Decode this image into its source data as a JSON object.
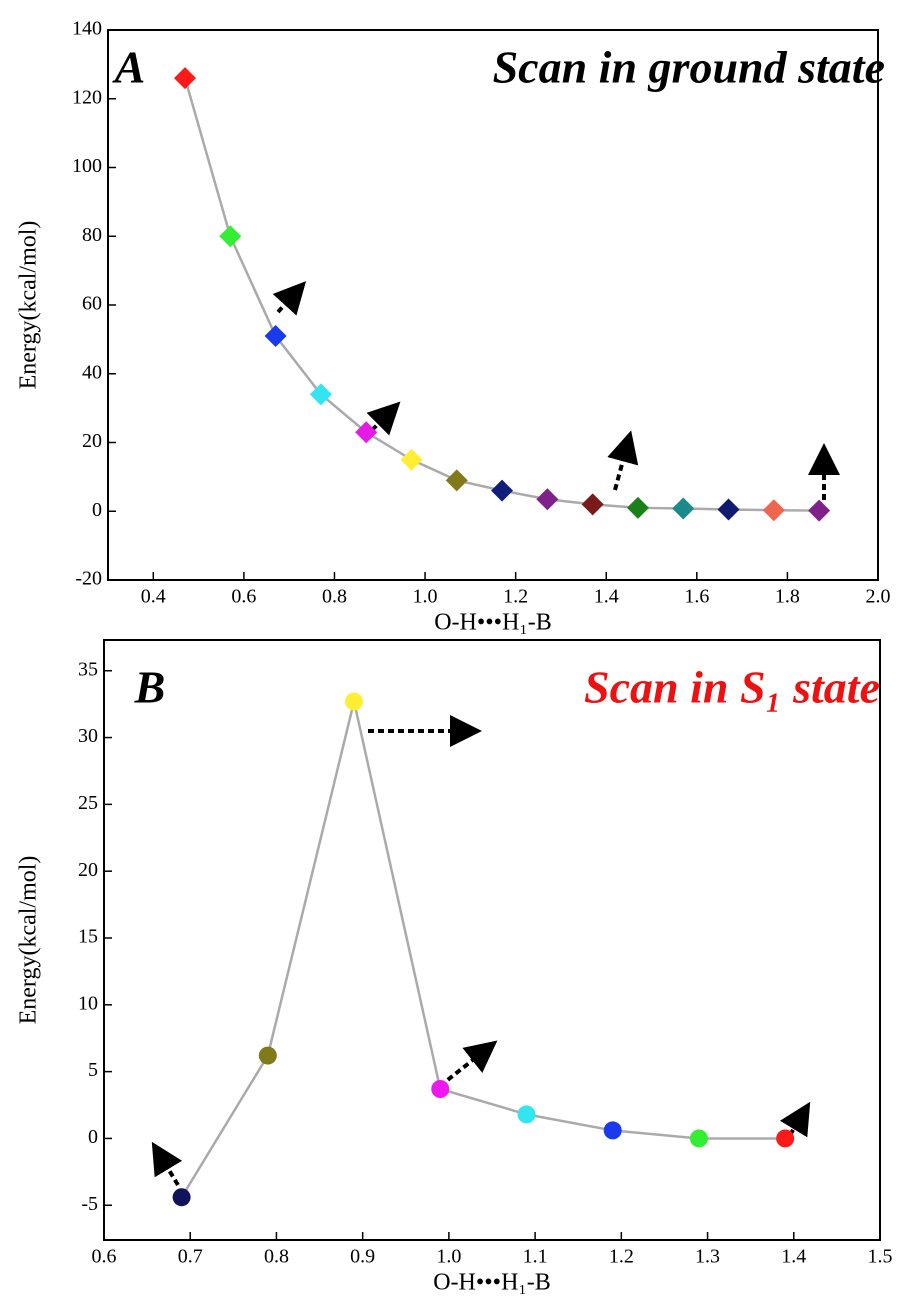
{
  "chart_data": [
    {
      "type": "line",
      "panel_label": "A",
      "title": "Scan in ground state",
      "title_color": "#000000",
      "x_label": "O-H•••H₁-B",
      "y_label": "Energy(kcal/mol)",
      "x": [
        0.47,
        0.57,
        0.67,
        0.77,
        0.87,
        0.97,
        1.07,
        1.17,
        1.27,
        1.37,
        1.47,
        1.57,
        1.67,
        1.77,
        1.87
      ],
      "values": [
        126,
        80,
        51,
        34,
        23,
        15,
        9,
        6,
        3.5,
        2,
        1,
        0.8,
        0.5,
        0.3,
        0.2
      ],
      "point_colors": [
        "#ff1a1a",
        "#33ee33",
        "#1a3aee",
        "#33e5f0",
        "#e619e6",
        "#ffee33",
        "#807a1a",
        "#10207a",
        "#80208a",
        "#7a1a1a",
        "#1a801a",
        "#1a8a8a",
        "#101a70",
        "#ee6650",
        "#80208a"
      ],
      "marker": "diamond",
      "line_color": "#aaaaaa",
      "xlim": [
        0.3,
        2.0
      ],
      "xticks": [
        0.4,
        0.6,
        0.8,
        {
          "value": 1,
          "label": "1.0"
        },
        1.2,
        1.4,
        1.6,
        1.8,
        {
          "value": 2,
          "label": "2.0"
        }
      ],
      "ylim": [
        -20,
        140
      ],
      "yticks": [
        -20,
        0,
        20,
        40,
        60,
        80,
        100,
        120,
        140
      ]
    },
    {
      "type": "line",
      "panel_label": "B",
      "title": "Scan in  S₁ state",
      "title_color": "#ee1111",
      "x_label": "O-H•••H₁-B",
      "y_label": "Energy(kcal/mol)",
      "x": [
        0.69,
        0.79,
        0.89,
        0.99,
        1.09,
        1.19,
        1.29,
        1.39
      ],
      "values": [
        -4.4,
        6.2,
        32.7,
        3.7,
        1.8,
        0.6,
        0,
        0
      ],
      "point_colors": [
        "#10145a",
        "#807a1a",
        "#ffee33",
        "#ee19ee",
        "#33e5f0",
        "#1a3aee",
        "#33ee33",
        "#ff1a1a"
      ],
      "marker": "circle",
      "line_color": "#aaaaaa",
      "xlim": [
        0.6,
        1.5
      ],
      "xticks": [
        0.6,
        0.7,
        0.8,
        0.9,
        {
          "value": 1,
          "label": "1.0"
        },
        1.1,
        1.2,
        1.3,
        1.4,
        1.5
      ],
      "ylim": [
        -7.6,
        37.3
      ],
      "yticks": [
        -5,
        0,
        5,
        10,
        15,
        20,
        25,
        30,
        35
      ]
    }
  ]
}
